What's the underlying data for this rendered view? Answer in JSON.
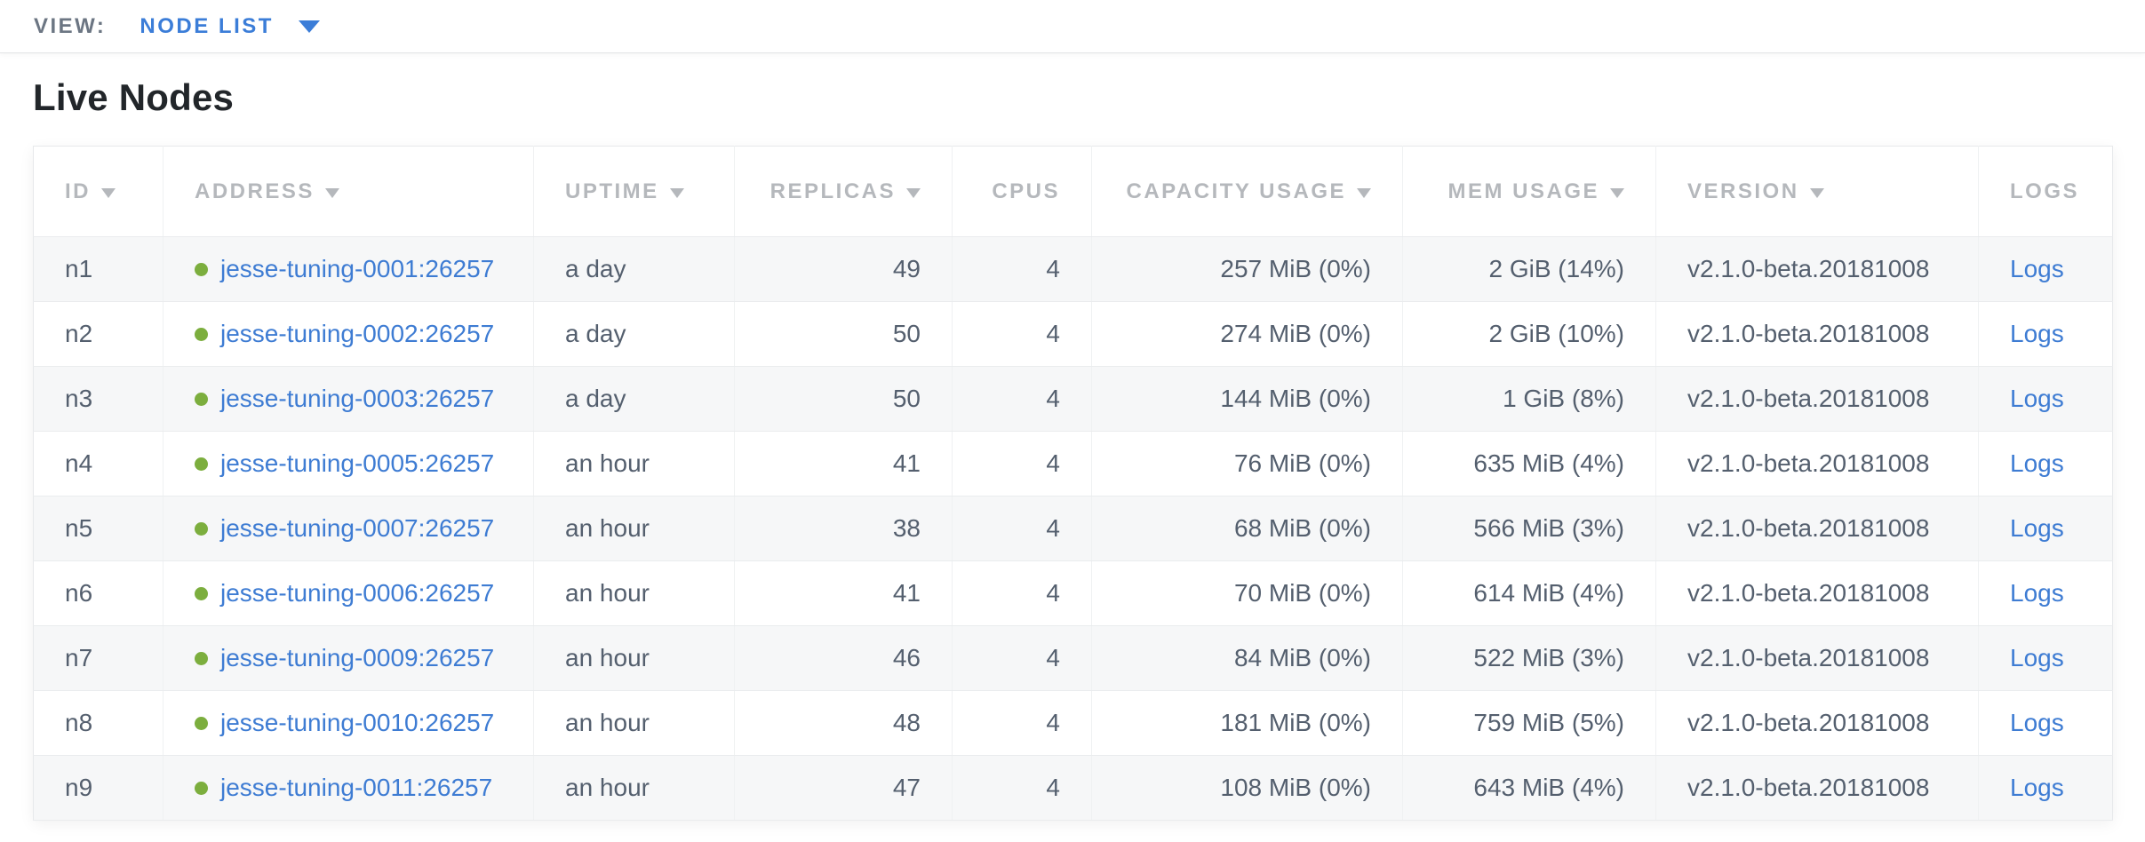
{
  "view_bar": {
    "label": "VIEW:",
    "selected": "NODE LIST"
  },
  "page": {
    "title": "Live Nodes"
  },
  "table": {
    "columns": [
      {
        "key": "id",
        "label": "ID",
        "sortable": true,
        "align": "left"
      },
      {
        "key": "address",
        "label": "ADDRESS",
        "sortable": true,
        "align": "left"
      },
      {
        "key": "uptime",
        "label": "UPTIME",
        "sortable": true,
        "align": "left"
      },
      {
        "key": "replicas",
        "label": "REPLICAS",
        "sortable": true,
        "align": "right"
      },
      {
        "key": "cpus",
        "label": "CPUS",
        "sortable": false,
        "align": "right"
      },
      {
        "key": "capacity",
        "label": "CAPACITY USAGE",
        "sortable": true,
        "align": "right"
      },
      {
        "key": "mem",
        "label": "MEM USAGE",
        "sortable": true,
        "align": "right"
      },
      {
        "key": "version",
        "label": "VERSION",
        "sortable": true,
        "align": "left"
      },
      {
        "key": "logs",
        "label": "LOGS",
        "sortable": false,
        "align": "left"
      }
    ],
    "rows": [
      {
        "id": "n1",
        "status": "live",
        "address": "jesse-tuning-0001:26257",
        "uptime": "a day",
        "replicas": "49",
        "cpus": "4",
        "capacity": "257 MiB (0%)",
        "mem": "2 GiB (14%)",
        "version": "v2.1.0-beta.20181008",
        "logs": "Logs"
      },
      {
        "id": "n2",
        "status": "live",
        "address": "jesse-tuning-0002:26257",
        "uptime": "a day",
        "replicas": "50",
        "cpus": "4",
        "capacity": "274 MiB (0%)",
        "mem": "2 GiB (10%)",
        "version": "v2.1.0-beta.20181008",
        "logs": "Logs"
      },
      {
        "id": "n3",
        "status": "live",
        "address": "jesse-tuning-0003:26257",
        "uptime": "a day",
        "replicas": "50",
        "cpus": "4",
        "capacity": "144 MiB (0%)",
        "mem": "1 GiB (8%)",
        "version": "v2.1.0-beta.20181008",
        "logs": "Logs"
      },
      {
        "id": "n4",
        "status": "live",
        "address": "jesse-tuning-0005:26257",
        "uptime": "an hour",
        "replicas": "41",
        "cpus": "4",
        "capacity": "76 MiB (0%)",
        "mem": "635 MiB (4%)",
        "version": "v2.1.0-beta.20181008",
        "logs": "Logs"
      },
      {
        "id": "n5",
        "status": "live",
        "address": "jesse-tuning-0007:26257",
        "uptime": "an hour",
        "replicas": "38",
        "cpus": "4",
        "capacity": "68 MiB (0%)",
        "mem": "566 MiB (3%)",
        "version": "v2.1.0-beta.20181008",
        "logs": "Logs"
      },
      {
        "id": "n6",
        "status": "live",
        "address": "jesse-tuning-0006:26257",
        "uptime": "an hour",
        "replicas": "41",
        "cpus": "4",
        "capacity": "70 MiB (0%)",
        "mem": "614 MiB (4%)",
        "version": "v2.1.0-beta.20181008",
        "logs": "Logs"
      },
      {
        "id": "n7",
        "status": "live",
        "address": "jesse-tuning-0009:26257",
        "uptime": "an hour",
        "replicas": "46",
        "cpus": "4",
        "capacity": "84 MiB (0%)",
        "mem": "522 MiB (3%)",
        "version": "v2.1.0-beta.20181008",
        "logs": "Logs"
      },
      {
        "id": "n8",
        "status": "live",
        "address": "jesse-tuning-0010:26257",
        "uptime": "an hour",
        "replicas": "48",
        "cpus": "4",
        "capacity": "181 MiB (0%)",
        "mem": "759 MiB (5%)",
        "version": "v2.1.0-beta.20181008",
        "logs": "Logs"
      },
      {
        "id": "n9",
        "status": "live",
        "address": "jesse-tuning-0011:26257",
        "uptime": "an hour",
        "replicas": "47",
        "cpus": "4",
        "capacity": "108 MiB (0%)",
        "mem": "643 MiB (4%)",
        "version": "v2.1.0-beta.20181008",
        "logs": "Logs"
      }
    ]
  },
  "colors": {
    "accent_blue": "#3b7dd8",
    "link_blue": "#3e7cd3",
    "live_green": "#7cae3e",
    "header_gray": "#b5b8bc",
    "cell_gray": "#545f6e",
    "view_label_gray": "#6c7683"
  }
}
